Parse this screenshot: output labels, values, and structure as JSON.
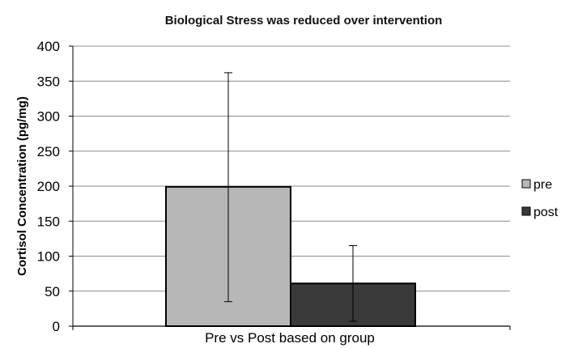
{
  "chart_data": {
    "type": "bar",
    "title": "Biological Stress was reduced over intervention",
    "xlabel": "Pre vs Post based on group",
    "ylabel": "Cortisol Concentration (pg/mg)",
    "ylim": [
      0,
      400
    ],
    "yticks": [
      0,
      50,
      100,
      150,
      200,
      250,
      300,
      350,
      400
    ],
    "grid": true,
    "legend_position": "right",
    "categories": [
      "Pre vs Post based on group"
    ],
    "series": [
      {
        "name": "pre",
        "values": [
          199
        ],
        "error_low": [
          35
        ],
        "error_high": [
          362
        ],
        "color": "#b7b7b7"
      },
      {
        "name": "post",
        "values": [
          61
        ],
        "error_low": [
          7
        ],
        "error_high": [
          115
        ],
        "color": "#3a3a3a"
      }
    ]
  }
}
